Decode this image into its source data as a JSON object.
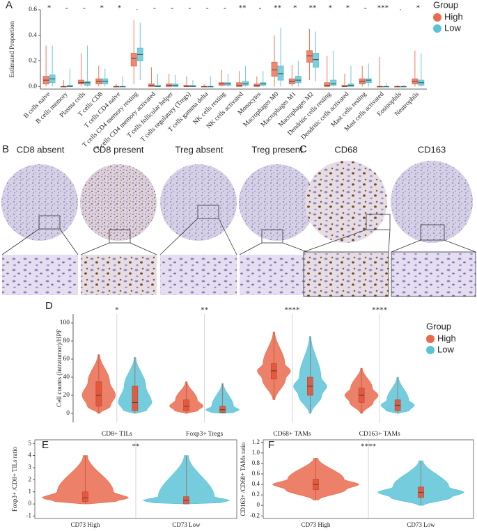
{
  "chart_data": [
    {
      "type": "box",
      "panel": "A",
      "ylabel": "Estimated Proportion",
      "categories": [
        "B cells naive",
        "B cells memory",
        "Plasma cells",
        "T cells CD8",
        "T cells CD4 naive",
        "T cells CD4 memory resting",
        "T cells CD4 memory activated",
        "T cells follicular helper",
        "T cells regulatory (Tregs)",
        "T cells gamma delta",
        "NK cells resting",
        "NK cells activated",
        "Monocytes",
        "Macrophages M0",
        "Macrophages M1",
        "Macrophages M2",
        "Dendritic cells resting",
        "Dendritic cells activated",
        "Mast cells resting",
        "Mast cells activated",
        "Eosinophils",
        "Neutrophils"
      ],
      "significance": [
        "*",
        "-",
        "-",
        "*",
        "*",
        ".",
        "-",
        "-",
        "-",
        "-",
        "-",
        "**",
        "-",
        "**",
        "*",
        "**",
        "*",
        "*",
        "-",
        "***",
        ".",
        "*"
      ],
      "series": [
        {
          "name": "High",
          "color": "#ea6a4e",
          "min": [
            0,
            0,
            0,
            0,
            0,
            0.02,
            0,
            0,
            0,
            0,
            0,
            0,
            0,
            0,
            0,
            0.05,
            0,
            0,
            0,
            0,
            0,
            0
          ],
          "q1": [
            0.02,
            0,
            0.02,
            0.02,
            0,
            0.16,
            0,
            0,
            0,
            0,
            0.01,
            0,
            0,
            0.08,
            0.02,
            0.19,
            0,
            0,
            0.02,
            0,
            0,
            0.02
          ],
          "median": [
            0.05,
            0,
            0.03,
            0.04,
            0,
            0.22,
            0.01,
            0.01,
            0,
            0,
            0.02,
            0.01,
            0.01,
            0.13,
            0.04,
            0.24,
            0.01,
            0,
            0.04,
            0,
            0,
            0.04
          ],
          "q3": [
            0.08,
            0,
            0.05,
            0.06,
            0,
            0.26,
            0.02,
            0.02,
            0.01,
            0,
            0.03,
            0.03,
            0.02,
            0.19,
            0.06,
            0.28,
            0.03,
            0.01,
            0.06,
            0,
            0,
            0.06
          ],
          "max": [
            0.32,
            0.05,
            0.26,
            0.16,
            0.02,
            0.52,
            0.15,
            0.1,
            0.08,
            0.02,
            0.13,
            0.12,
            0.08,
            0.4,
            0.17,
            0.45,
            0.24,
            0.1,
            0.16,
            0.23,
            0.01,
            0.28
          ]
        },
        {
          "name": "Low",
          "color": "#5cc3d6",
          "min": [
            0,
            0,
            0,
            0,
            0,
            0.05,
            0,
            0,
            0,
            0,
            0,
            0,
            0,
            0,
            0,
            0.04,
            0,
            0,
            0,
            0,
            0,
            0
          ],
          "q1": [
            0.03,
            0,
            0.01,
            0.02,
            0,
            0.2,
            0,
            0,
            0,
            0,
            0.01,
            0.01,
            0.01,
            0.05,
            0.03,
            0.15,
            0.01,
            0,
            0.03,
            0,
            0,
            0.01
          ],
          "median": [
            0.06,
            0,
            0.03,
            0.04,
            0,
            0.25,
            0,
            0.01,
            0,
            0,
            0.02,
            0.02,
            0.02,
            0.1,
            0.05,
            0.21,
            0.02,
            0.01,
            0.05,
            0,
            0,
            0.03
          ],
          "q3": [
            0.09,
            0.01,
            0.04,
            0.06,
            0,
            0.3,
            0.01,
            0.02,
            0.01,
            0,
            0.03,
            0.04,
            0.03,
            0.16,
            0.08,
            0.26,
            0.05,
            0.02,
            0.06,
            0,
            0,
            0.05
          ],
          "max": [
            0.32,
            0.14,
            0.32,
            0.14,
            0.08,
            0.5,
            0.1,
            0.09,
            0.05,
            0.08,
            0.1,
            0.16,
            0.12,
            0.46,
            0.2,
            0.43,
            0.28,
            0.16,
            0.18,
            0.03,
            0.01,
            0.26
          ]
        }
      ],
      "ylim": [
        -0.02,
        0.6
      ],
      "yticks": [
        {
          "value": 0,
          "label": "0.0"
        },
        0.2,
        0.4,
        0.6
      ],
      "legend": {
        "title": "Group",
        "position": "right"
      }
    },
    {
      "type": "violin",
      "panel": "D",
      "ylabel": "Cell counts (intratumor)/HPF",
      "categories": [
        "CD8+ TILs",
        "Foxp3+ Tregs",
        "CD68+ TAMs",
        "CD163+ TAMs"
      ],
      "significance": [
        "*",
        "**",
        "****",
        "****"
      ],
      "series": [
        {
          "name": "High",
          "color": "#ea6a4e",
          "min": [
            0,
            0,
            15,
            0
          ],
          "q1": [
            8,
            3,
            38,
            12
          ],
          "median": [
            20,
            8,
            47,
            20
          ],
          "q3": [
            35,
            15,
            55,
            28
          ],
          "max": [
            65,
            35,
            90,
            50
          ]
        },
        {
          "name": "Low",
          "color": "#5cc3d6",
          "min": [
            0,
            0,
            0,
            0
          ],
          "q1": [
            3,
            1,
            20,
            3
          ],
          "median": [
            12,
            4,
            30,
            9
          ],
          "q3": [
            30,
            8,
            40,
            15
          ],
          "max": [
            62,
            33,
            85,
            40
          ]
        }
      ],
      "ylim": [
        -10,
        110
      ],
      "yticks": [
        0,
        20,
        40,
        60,
        80,
        100
      ],
      "legend": {
        "title": "Group",
        "position": "right"
      }
    },
    {
      "type": "violin",
      "panel": "E",
      "ylabel": "Foxp3+ /CD8+ TILs ratio",
      "categories": [
        "CD73 High",
        "CD73 Low"
      ],
      "significance": [
        "**"
      ],
      "colors": [
        "#ea6a4e",
        "#5cc3d6"
      ],
      "min": [
        0,
        0
      ],
      "q1": [
        0.2,
        0
      ],
      "median": [
        0.5,
        0.3
      ],
      "q3": [
        1,
        0.6
      ],
      "max": [
        4,
        4
      ],
      "ylim": [
        -1.2,
        5.3
      ],
      "yticks": [
        -1,
        0,
        1,
        2,
        3,
        4,
        5
      ]
    },
    {
      "type": "violin",
      "panel": "F",
      "ylabel": "CD163+ /CD68+ TAMs ratio",
      "categories": [
        "CD73 High",
        "CD73 Low"
      ],
      "significance": [
        "****"
      ],
      "colors": [
        "#ea6a4e",
        "#5cc3d6"
      ],
      "min": [
        0.1,
        0
      ],
      "q1": [
        0.3,
        0.15
      ],
      "median": [
        0.4,
        0.25
      ],
      "q3": [
        0.5,
        0.35
      ],
      "max": [
        0.9,
        0.85
      ],
      "ylim": [
        -0.25,
        1.25
      ],
      "yticks": [
        -0.2,
        0,
        0.2,
        0.4,
        0.6,
        0.8,
        {
          "value": 1,
          "label": "1.0"
        },
        1.2
      ]
    }
  ],
  "images": {
    "B": {
      "panel": "B",
      "titles": [
        "CD8 absent",
        "CD8 present",
        "Treg absent",
        "Treg present"
      ]
    },
    "C": {
      "panel": "C",
      "titles": [
        "CD68",
        "CD163"
      ]
    }
  }
}
